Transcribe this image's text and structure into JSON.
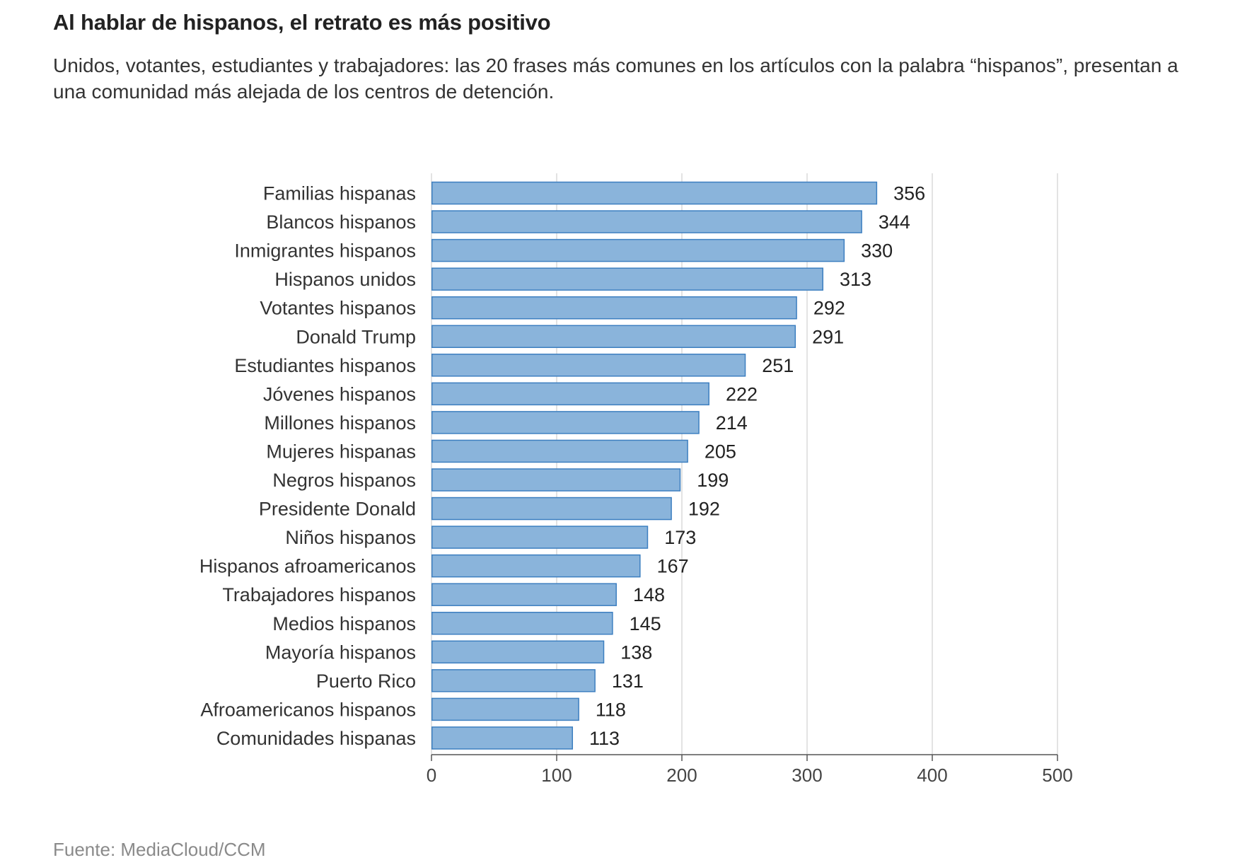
{
  "title": "Al hablar de hispanos, el retrato es más positivo",
  "subtitle": "Unidos, votantes, estudiantes y trabajadores: las 20 frases más comunes en los artículos con la palabra “hispanos”, presentan a una comunidad más alejada de los centros de detención.",
  "source": "Fuente: MediaCloud/CCM",
  "chart_data": {
    "type": "bar",
    "orientation": "horizontal",
    "categories": [
      "Familias hispanas",
      "Blancos hispanos",
      "Inmigrantes hispanos",
      "Hispanos unidos",
      "Votantes hispanos",
      "Donald Trump",
      "Estudiantes hispanos",
      "Jóvenes hispanos",
      "Millones hispanos",
      "Mujeres hispanas",
      "Negros hispanos",
      "Presidente Donald",
      "Niños hispanos",
      "Hispanos afroamericanos",
      "Trabajadores hispanos",
      "Medios hispanos",
      "Mayoría hispanos",
      "Puerto Rico",
      "Afroamericanos hispanos",
      "Comunidades hispanas"
    ],
    "values": [
      356,
      344,
      330,
      313,
      292,
      291,
      251,
      222,
      214,
      205,
      199,
      192,
      173,
      167,
      148,
      145,
      138,
      131,
      118,
      113
    ],
    "xlim": [
      0,
      500
    ],
    "xticks": [
      "0",
      "100",
      "200",
      "300",
      "400",
      "500"
    ],
    "xlabel": "",
    "ylabel": "",
    "grid": true,
    "legend": "none",
    "bar_fill": "#8ab4db",
    "bar_stroke": "#3d7fc0",
    "grid_color": "#e3e3e3"
  }
}
